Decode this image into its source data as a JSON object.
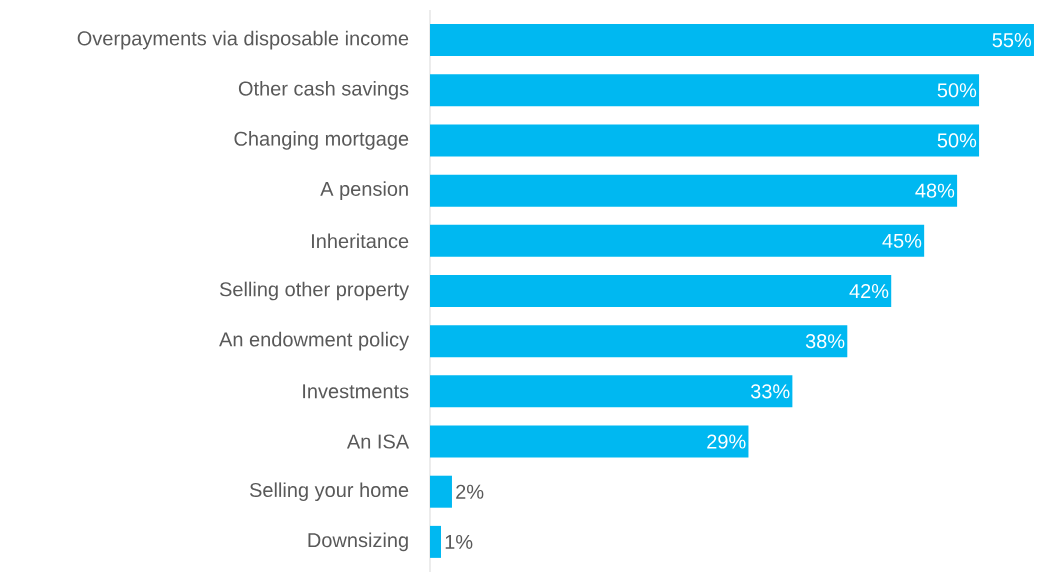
{
  "chart_data": {
    "type": "bar",
    "orientation": "horizontal",
    "categories": [
      "Overpayments via disposable income",
      "Other cash savings",
      "Changing mortgage",
      "A pension",
      "Inheritance",
      "Selling other property",
      "An endowment policy",
      "Investments",
      "An ISA",
      "Selling your home",
      "Downsizing"
    ],
    "values": [
      55,
      50,
      50,
      48,
      45,
      42,
      38,
      33,
      29,
      2,
      1
    ],
    "value_labels": [
      "55%",
      "50%",
      "50%",
      "48%",
      "45%",
      "42%",
      "38%",
      "33%",
      "29%",
      "2%",
      "1%"
    ],
    "color": "#00b8f1"
  }
}
